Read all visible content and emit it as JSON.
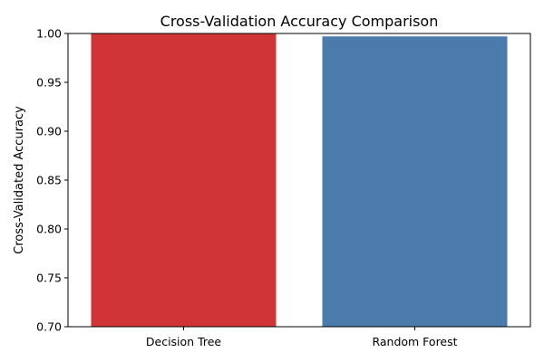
{
  "chart_data": {
    "type": "bar",
    "title": "Cross-Validation Accuracy Comparison",
    "xlabel": "",
    "ylabel": "Cross-Validated Accuracy",
    "categories": [
      "Decision Tree",
      "Random Forest"
    ],
    "values": [
      1.0,
      0.997
    ],
    "colors": [
      "#d03437",
      "#4a7bab"
    ],
    "ylim": [
      0.7,
      1.0
    ],
    "yticks": [
      "0.70",
      "0.75",
      "0.80",
      "0.85",
      "0.90",
      "0.95",
      "1.00"
    ],
    "grid": false,
    "legend": "none"
  }
}
